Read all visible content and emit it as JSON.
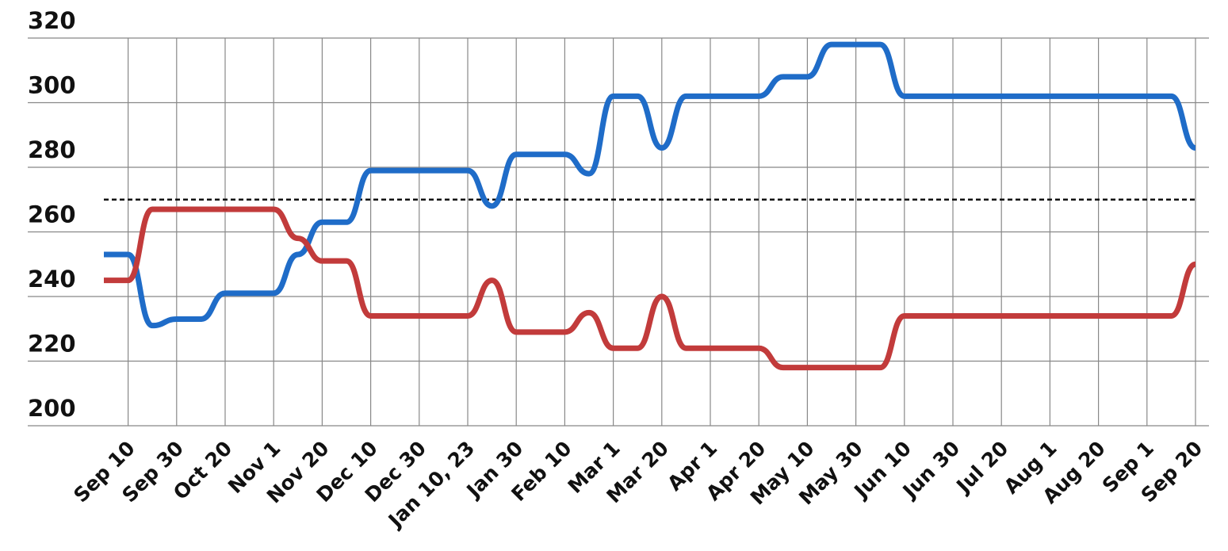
{
  "chart_data": {
    "type": "line",
    "categories": [
      null,
      "Sep 10",
      null,
      "Sep 30",
      null,
      "Oct 20",
      null,
      "Nov 1",
      null,
      "Nov 20",
      null,
      "Dec 10",
      null,
      "Dec 30",
      null,
      "Jan 10, 23",
      null,
      "Jan 30",
      null,
      "Feb 10",
      null,
      "Mar 1",
      null,
      "Mar 20",
      null,
      "Apr 1",
      null,
      "Apr 20",
      null,
      "May 10",
      null,
      "May 30",
      null,
      "Jun 10",
      null,
      "Jun 30",
      null,
      "Jul 20",
      null,
      "Aug 1",
      null,
      "Aug 20",
      null,
      "Sep 1",
      null,
      "Sep 20"
    ],
    "series": [
      {
        "color": "#1f6cc8",
        "values": [
          253,
          253,
          231,
          233,
          233,
          241,
          241,
          241,
          253,
          263,
          263,
          279,
          279,
          279,
          279,
          279,
          268,
          284,
          284,
          284,
          278,
          302,
          302,
          286,
          302,
          302,
          302,
          302,
          308,
          308,
          318,
          318,
          318,
          302,
          302,
          302,
          302,
          302,
          302,
          302,
          302,
          302,
          302,
          302,
          302,
          286
        ]
      },
      {
        "color": "#c23b3b",
        "values": [
          245,
          245,
          267,
          267,
          267,
          267,
          267,
          267,
          258,
          251,
          251,
          234,
          234,
          234,
          234,
          234,
          245,
          229,
          229,
          229,
          235,
          224,
          224,
          240,
          224,
          224,
          224,
          224,
          218,
          218,
          218,
          218,
          218,
          234,
          234,
          234,
          234,
          234,
          234,
          234,
          234,
          234,
          234,
          234,
          234,
          250
        ]
      }
    ],
    "reference_line": 270,
    "ylim": [
      200,
      320
    ],
    "yticks": [
      200,
      220,
      240,
      260,
      280,
      300,
      320
    ],
    "grid": true
  }
}
